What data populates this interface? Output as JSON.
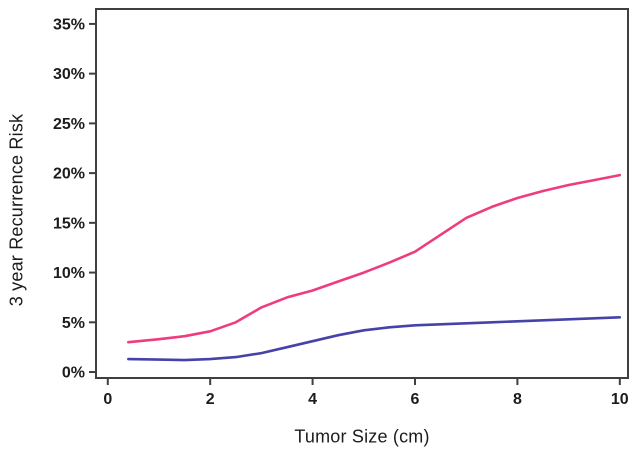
{
  "chart_data": {
    "type": "line",
    "title": "",
    "xlabel": "Tumor Size (cm)",
    "ylabel": "3 year Recurrence Risk",
    "x": [
      0.4,
      1,
      1.5,
      2,
      2.5,
      3,
      3.5,
      4,
      4.5,
      5,
      5.5,
      6,
      6.5,
      7,
      7.5,
      8,
      8.5,
      9,
      9.5,
      10
    ],
    "series": [
      {
        "name": "pink-curve",
        "color": "#ee3d7f",
        "values": [
          3.0,
          3.3,
          3.6,
          4.1,
          5.0,
          6.5,
          7.5,
          8.2,
          9.1,
          10.0,
          11.0,
          12.1,
          13.8,
          15.5,
          16.6,
          17.5,
          18.2,
          18.8,
          19.3,
          19.8
        ]
      },
      {
        "name": "blue-curve",
        "color": "#4543a8",
        "values": [
          1.3,
          1.25,
          1.2,
          1.3,
          1.5,
          1.9,
          2.5,
          3.1,
          3.7,
          4.2,
          4.5,
          4.7,
          4.8,
          4.9,
          5.0,
          5.1,
          5.2,
          5.3,
          5.4,
          5.5
        ]
      }
    ],
    "xticks": {
      "values": [
        0,
        2,
        4,
        6,
        8,
        10
      ],
      "labels": [
        "0",
        "2",
        "4",
        "6",
        "8",
        "10"
      ]
    },
    "yticks": {
      "values": [
        0,
        5,
        10,
        15,
        20,
        25,
        30,
        35
      ],
      "labels": [
        "0%",
        "5%",
        "10%",
        "15%",
        "20%",
        "25%",
        "30%",
        "35%"
      ]
    },
    "xlim": [
      -0.23,
      10.16
    ],
    "ylim": [
      -0.6,
      36.5
    ],
    "grid": false,
    "legend": "none",
    "axis_color": "#3f3f3f",
    "text_color": "#1c1c1c"
  }
}
